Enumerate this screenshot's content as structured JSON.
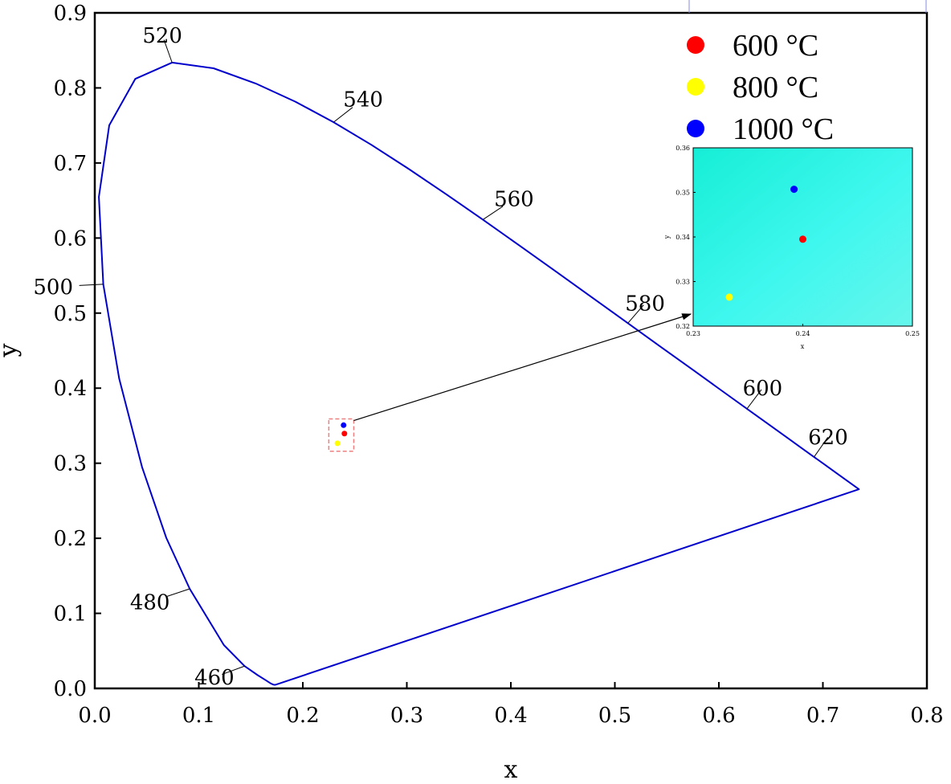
{
  "chart_data": {
    "type": "scatter",
    "title": "",
    "xlabel": "x",
    "ylabel": "y",
    "xlim": [
      0.0,
      0.8
    ],
    "ylim": [
      0.0,
      0.9
    ],
    "x_ticks": [
      "0.0",
      "0.1",
      "0.2",
      "0.3",
      "0.4",
      "0.5",
      "0.6",
      "0.7",
      "0.8"
    ],
    "y_ticks": [
      "0.0",
      "0.1",
      "0.2",
      "0.3",
      "0.4",
      "0.5",
      "0.6",
      "0.7",
      "0.8",
      "0.9"
    ],
    "grid": false,
    "legend_position": "top-right",
    "locus_color": "#0000cc",
    "spectral_locus": [
      [
        0.1741,
        0.005
      ],
      [
        0.1738,
        0.0049
      ],
      [
        0.1733,
        0.0048
      ],
      [
        0.1726,
        0.0048
      ],
      [
        0.1714,
        0.0051
      ],
      [
        0.1689,
        0.0069
      ],
      [
        0.1644,
        0.0109
      ],
      [
        0.1566,
        0.0177
      ],
      [
        0.144,
        0.0297
      ],
      [
        0.1241,
        0.0578
      ],
      [
        0.0913,
        0.1327
      ],
      [
        0.0687,
        0.2007
      ],
      [
        0.0454,
        0.295
      ],
      [
        0.0235,
        0.4127
      ],
      [
        0.0082,
        0.5384
      ],
      [
        0.0039,
        0.6548
      ],
      [
        0.0139,
        0.7502
      ],
      [
        0.0389,
        0.812
      ],
      [
        0.0743,
        0.8338
      ],
      [
        0.1142,
        0.8262
      ],
      [
        0.1547,
        0.8059
      ],
      [
        0.1929,
        0.7816
      ],
      [
        0.2296,
        0.7543
      ],
      [
        0.2658,
        0.7243
      ],
      [
        0.3016,
        0.6923
      ],
      [
        0.3373,
        0.6589
      ],
      [
        0.3731,
        0.6245
      ],
      [
        0.4087,
        0.5896
      ],
      [
        0.4441,
        0.5547
      ],
      [
        0.4788,
        0.5202
      ],
      [
        0.5125,
        0.4866
      ],
      [
        0.5448,
        0.4544
      ],
      [
        0.5752,
        0.4242
      ],
      [
        0.6029,
        0.3965
      ],
      [
        0.627,
        0.3725
      ],
      [
        0.6482,
        0.3514
      ],
      [
        0.6658,
        0.334
      ],
      [
        0.6801,
        0.3197
      ],
      [
        0.6915,
        0.3083
      ],
      [
        0.7006,
        0.2993
      ],
      [
        0.714,
        0.2859
      ],
      [
        0.7347,
        0.2653
      ]
    ],
    "wavelength_labels": [
      {
        "label": "460",
        "x": 0.144,
        "y": 0.0297,
        "tx": 0.115,
        "ty": 0.015
      },
      {
        "label": "480",
        "x": 0.0913,
        "y": 0.1327,
        "tx": 0.053,
        "ty": 0.115
      },
      {
        "label": "500",
        "x": 0.0082,
        "y": 0.5384,
        "tx": -0.04,
        "ty": 0.535
      },
      {
        "label": "520",
        "x": 0.0743,
        "y": 0.8338,
        "tx": 0.065,
        "ty": 0.87
      },
      {
        "label": "540",
        "x": 0.2296,
        "y": 0.7543,
        "tx": 0.258,
        "ty": 0.785
      },
      {
        "label": "560",
        "x": 0.3731,
        "y": 0.6245,
        "tx": 0.403,
        "ty": 0.652
      },
      {
        "label": "580",
        "x": 0.5125,
        "y": 0.4866,
        "tx": 0.529,
        "ty": 0.513
      },
      {
        "label": "600",
        "x": 0.627,
        "y": 0.3725,
        "tx": 0.642,
        "ty": 0.4
      },
      {
        "label": "620",
        "x": 0.6915,
        "y": 0.3083,
        "tx": 0.705,
        "ty": 0.335
      }
    ],
    "series": [
      {
        "name": "600 °C",
        "color": "#ff0000",
        "x": [
          0.24
        ],
        "y": [
          0.3395
        ]
      },
      {
        "name": "800 °C",
        "color": "#ffff00",
        "x": [
          0.2333
        ],
        "y": [
          0.3265
        ]
      },
      {
        "name": "1000 °C",
        "color": "#0000ff",
        "x": [
          0.2392
        ],
        "y": [
          0.3507
        ]
      }
    ],
    "zoom_box": {
      "xlim": [
        0.225,
        0.249
      ],
      "ylim": [
        0.316,
        0.359
      ],
      "color": "#f08080"
    },
    "inset": {
      "xlabel": "x",
      "ylabel": "y",
      "xlim": [
        0.23,
        0.25
      ],
      "ylim": [
        0.32,
        0.36
      ],
      "x_ticks": [
        "0.23",
        "0.24",
        "0.25"
      ],
      "y_ticks": [
        "0.32",
        "0.33",
        "0.34",
        "0.35",
        "0.36"
      ],
      "background": "#4ff5e4"
    }
  }
}
